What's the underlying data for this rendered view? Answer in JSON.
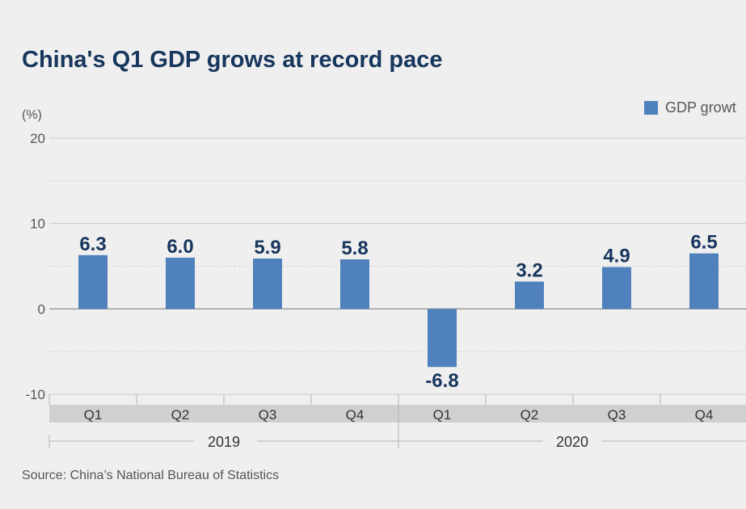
{
  "title": "China's Q1 GDP grows at record pace",
  "unit_label": "(%)",
  "legend_label": "GDP growt",
  "source": "Source: China’s National Bureau of Statistics",
  "colors": {
    "bar": "#4f81bd",
    "title": "#17365d",
    "value_label": "#17365d",
    "quarter_band": "#d0d0d0"
  },
  "chart_data": {
    "type": "bar",
    "title": "China's Q1 GDP grows at record pace",
    "ylabel": "(%)",
    "ylim": [
      -10,
      20
    ],
    "yticks": [
      20,
      10,
      0,
      -10
    ],
    "grid": true,
    "legend": "top-right",
    "categories": [
      "Q1",
      "Q2",
      "Q3",
      "Q4",
      "Q1",
      "Q2",
      "Q3",
      "Q4"
    ],
    "groups": [
      {
        "label": "2019",
        "categories": [
          "Q1",
          "Q2",
          "Q3",
          "Q4"
        ]
      },
      {
        "label": "2020",
        "categories": [
          "Q1",
          "Q2",
          "Q3",
          "Q4"
        ]
      }
    ],
    "series": [
      {
        "name": "GDP growt",
        "values": [
          6.3,
          6.0,
          5.9,
          5.8,
          -6.8,
          3.2,
          4.9,
          6.5
        ]
      }
    ],
    "value_labels": [
      "6.3",
      "6.0",
      "5.9",
      "5.8",
      "-6.8",
      "3.2",
      "4.9",
      "6.5"
    ]
  }
}
